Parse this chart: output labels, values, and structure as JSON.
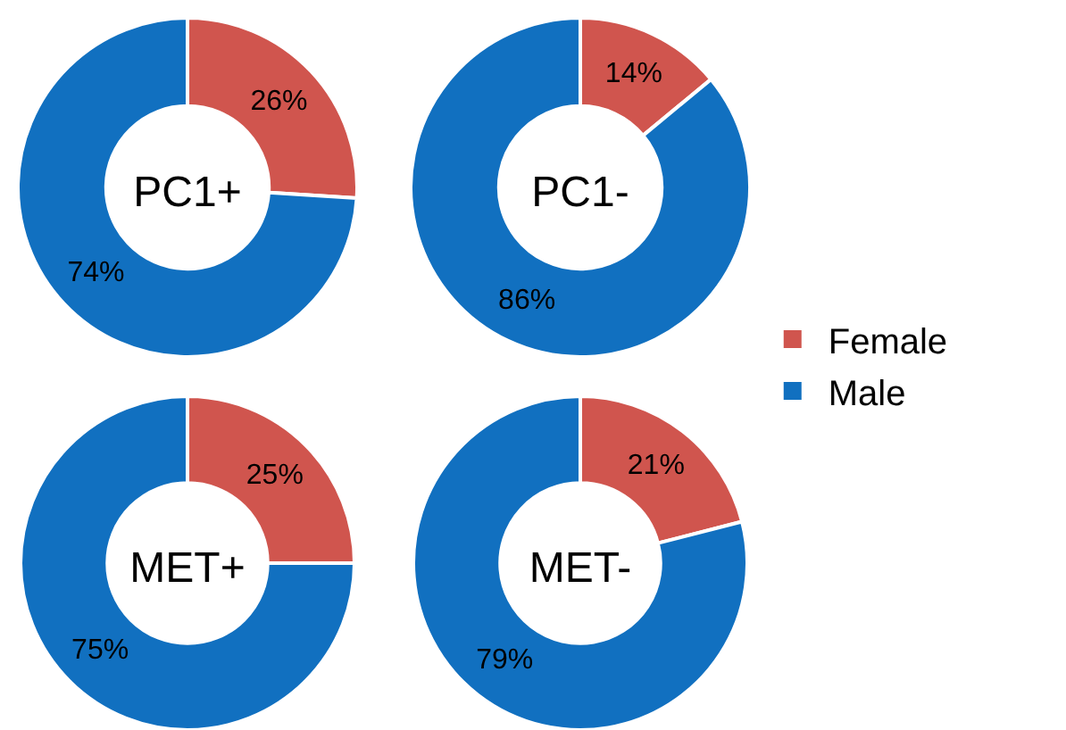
{
  "chart_data": [
    {
      "type": "donut",
      "title": "PC1+",
      "categories": [
        "Female",
        "Male"
      ],
      "values": [
        26,
        74
      ],
      "colors": [
        "#d0554e",
        "#1170c0"
      ],
      "value_labels": [
        "26%",
        "74%"
      ],
      "legend": "right"
    },
    {
      "type": "donut",
      "title": "PC1-",
      "categories": [
        null,
        null
      ],
      "values": [
        14,
        86
      ],
      "colors": [
        "#d0554e",
        "#1170c0"
      ],
      "value_labels": [
        "14%",
        "86%"
      ]
    },
    {
      "type": "donut",
      "title": "MET+",
      "categories": [
        null,
        null
      ],
      "values": [
        25,
        75
      ],
      "colors": [
        "#d0554e",
        "#1170c0"
      ],
      "value_labels": [
        "25%",
        "75%"
      ]
    },
    {
      "type": "donut",
      "title": "MET-",
      "categories": [
        null,
        null
      ],
      "values": [
        21,
        79
      ],
      "colors": [
        "#d0554e",
        "#1170c0"
      ],
      "value_labels": [
        "21%",
        "79%"
      ]
    }
  ]
}
